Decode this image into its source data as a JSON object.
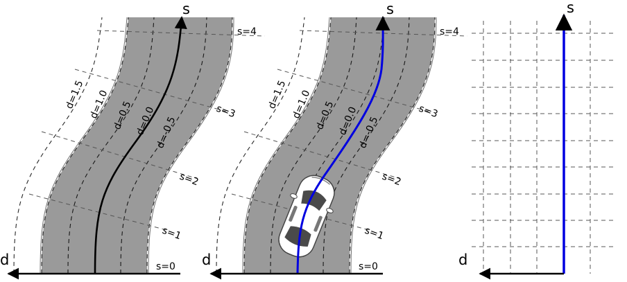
{
  "axes": {
    "s": "s",
    "d": "d"
  },
  "s_labels": [
    "s=0",
    "s=1",
    "s=2",
    "s=3",
    "s=4"
  ],
  "d_labels": [
    "d=1.5",
    "d=1.0",
    "d=0.5",
    "d=0.0",
    "d=-0.5"
  ],
  "colors": {
    "road": "#9a9a9a",
    "reference_line": "#000000",
    "path": "#0000e0"
  }
}
